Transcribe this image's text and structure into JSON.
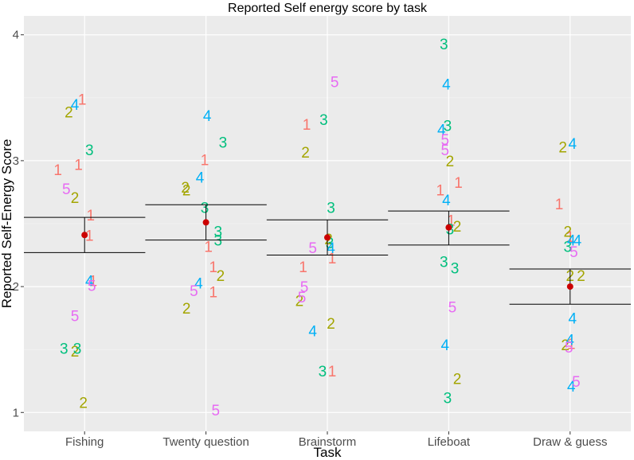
{
  "chart_data": {
    "type": "scatter",
    "title": "Reported Self energy score by task",
    "xlabel": "Task",
    "ylabel": "Reported Self-Energy Score",
    "ylim": [
      0.85,
      4.15
    ],
    "yticks": [
      "1",
      "2",
      "3",
      "4"
    ],
    "ytick_values": [
      1,
      2,
      3,
      4
    ],
    "categories": [
      "Fishing",
      "Twenty question",
      "Brainstorm",
      "Lifeboat",
      "Draw & guess"
    ],
    "group_colors": {
      "1": "#F8766D",
      "2": "#A3A500",
      "3": "#00BF7D",
      "4": "#00B0F6",
      "5": "#E76BF3"
    },
    "summary": [
      {
        "task": "Fishing",
        "mean": 2.41,
        "low": 2.27,
        "high": 2.55
      },
      {
        "task": "Twenty question",
        "mean": 2.51,
        "low": 2.37,
        "high": 2.65
      },
      {
        "task": "Brainstorm",
        "mean": 2.39,
        "low": 2.25,
        "high": 2.53
      },
      {
        "task": "Lifeboat",
        "mean": 2.47,
        "low": 2.33,
        "high": 2.6
      },
      {
        "task": "Draw & guess",
        "mean": 2.0,
        "low": 1.86,
        "high": 2.14
      }
    ],
    "points": [
      {
        "task": "Fishing",
        "group": "1",
        "jitter": -0.22,
        "y": 2.92
      },
      {
        "task": "Fishing",
        "group": "1",
        "jitter": -0.05,
        "y": 2.96
      },
      {
        "task": "Fishing",
        "group": "1",
        "jitter": -0.02,
        "y": 3.48
      },
      {
        "task": "Fishing",
        "group": "1",
        "jitter": 0.04,
        "y": 2.4
      },
      {
        "task": "Fishing",
        "group": "1",
        "jitter": 0.05,
        "y": 2.56
      },
      {
        "task": "Fishing",
        "group": "1",
        "jitter": 0.07,
        "y": 2.04
      },
      {
        "task": "Fishing",
        "group": "2",
        "jitter": -0.13,
        "y": 3.38
      },
      {
        "task": "Fishing",
        "group": "2",
        "jitter": -0.08,
        "y": 2.7
      },
      {
        "task": "Fishing",
        "group": "2",
        "jitter": -0.08,
        "y": 1.48
      },
      {
        "task": "Fishing",
        "group": "2",
        "jitter": -0.01,
        "y": 1.07
      },
      {
        "task": "Fishing",
        "group": "3",
        "jitter": 0.04,
        "y": 3.08
      },
      {
        "task": "Fishing",
        "group": "3",
        "jitter": -0.17,
        "y": 1.5
      },
      {
        "task": "Fishing",
        "group": "3",
        "jitter": -0.06,
        "y": 1.5
      },
      {
        "task": "Fishing",
        "group": "4",
        "jitter": -0.08,
        "y": 3.44
      },
      {
        "task": "Fishing",
        "group": "4",
        "jitter": 0.04,
        "y": 2.04
      },
      {
        "task": "Fishing",
        "group": "5",
        "jitter": -0.15,
        "y": 2.77
      },
      {
        "task": "Fishing",
        "group": "5",
        "jitter": -0.08,
        "y": 1.76
      },
      {
        "task": "Fishing",
        "group": "5",
        "jitter": 0.06,
        "y": 2.0
      },
      {
        "task": "Twenty question",
        "group": "1",
        "jitter": -0.01,
        "y": 3.0
      },
      {
        "task": "Twenty question",
        "group": "1",
        "jitter": 0.02,
        "y": 2.31
      },
      {
        "task": "Twenty question",
        "group": "1",
        "jitter": 0.06,
        "y": 2.15
      },
      {
        "task": "Twenty question",
        "group": "1",
        "jitter": 0.06,
        "y": 1.95
      },
      {
        "task": "Twenty question",
        "group": "2",
        "jitter": -0.17,
        "y": 2.78
      },
      {
        "task": "Twenty question",
        "group": "2",
        "jitter": -0.16,
        "y": 2.76
      },
      {
        "task": "Twenty question",
        "group": "2",
        "jitter": -0.16,
        "y": 1.82
      },
      {
        "task": "Twenty question",
        "group": "2",
        "jitter": 0.12,
        "y": 2.08
      },
      {
        "task": "Twenty question",
        "group": "3",
        "jitter": 0.14,
        "y": 3.14
      },
      {
        "task": "Twenty question",
        "group": "3",
        "jitter": -0.01,
        "y": 2.62
      },
      {
        "task": "Twenty question",
        "group": "3",
        "jitter": 0.1,
        "y": 2.43
      },
      {
        "task": "Twenty question",
        "group": "3",
        "jitter": 0.1,
        "y": 2.36
      },
      {
        "task": "Twenty question",
        "group": "4",
        "jitter": -0.05,
        "y": 2.86
      },
      {
        "task": "Twenty question",
        "group": "4",
        "jitter": -0.06,
        "y": 2.02
      },
      {
        "task": "Twenty question",
        "group": "4",
        "jitter": 0.01,
        "y": 3.35
      },
      {
        "task": "Twenty question",
        "group": "5",
        "jitter": -0.1,
        "y": 1.96
      },
      {
        "task": "Twenty question",
        "group": "5",
        "jitter": 0.08,
        "y": 1.01
      },
      {
        "task": "Brainstorm",
        "group": "1",
        "jitter": -0.17,
        "y": 3.28
      },
      {
        "task": "Brainstorm",
        "group": "1",
        "jitter": -0.2,
        "y": 2.15
      },
      {
        "task": "Brainstorm",
        "group": "1",
        "jitter": 0.04,
        "y": 2.22
      },
      {
        "task": "Brainstorm",
        "group": "1",
        "jitter": 0.04,
        "y": 1.32
      },
      {
        "task": "Brainstorm",
        "group": "2",
        "jitter": -0.18,
        "y": 3.06
      },
      {
        "task": "Brainstorm",
        "group": "2",
        "jitter": -0.23,
        "y": 1.88
      },
      {
        "task": "Brainstorm",
        "group": "2",
        "jitter": 0.01,
        "y": 2.37
      },
      {
        "task": "Brainstorm",
        "group": "2",
        "jitter": 0.03,
        "y": 1.7
      },
      {
        "task": "Brainstorm",
        "group": "3",
        "jitter": -0.03,
        "y": 3.32
      },
      {
        "task": "Brainstorm",
        "group": "3",
        "jitter": 0.03,
        "y": 2.62
      },
      {
        "task": "Brainstorm",
        "group": "3",
        "jitter": 0.02,
        "y": 2.34
      },
      {
        "task": "Brainstorm",
        "group": "3",
        "jitter": -0.04,
        "y": 1.32
      },
      {
        "task": "Brainstorm",
        "group": "4",
        "jitter": 0.03,
        "y": 2.3
      },
      {
        "task": "Brainstorm",
        "group": "4",
        "jitter": -0.12,
        "y": 1.64
      },
      {
        "task": "Brainstorm",
        "group": "5",
        "jitter": 0.06,
        "y": 3.62
      },
      {
        "task": "Brainstorm",
        "group": "5",
        "jitter": -0.12,
        "y": 2.3
      },
      {
        "task": "Brainstorm",
        "group": "5",
        "jitter": -0.19,
        "y": 1.99
      },
      {
        "task": "Brainstorm",
        "group": "5",
        "jitter": -0.21,
        "y": 1.91
      },
      {
        "task": "Lifeboat",
        "group": "1",
        "jitter": -0.07,
        "y": 2.76
      },
      {
        "task": "Lifeboat",
        "group": "1",
        "jitter": 0.08,
        "y": 2.82
      },
      {
        "task": "Lifeboat",
        "group": "1",
        "jitter": 0.02,
        "y": 2.52
      },
      {
        "task": "Lifeboat",
        "group": "2",
        "jitter": 0.01,
        "y": 2.99
      },
      {
        "task": "Lifeboat",
        "group": "2",
        "jitter": 0.07,
        "y": 2.47
      },
      {
        "task": "Lifeboat",
        "group": "2",
        "jitter": 0.07,
        "y": 1.26
      },
      {
        "task": "Lifeboat",
        "group": "3",
        "jitter": -0.04,
        "y": 3.92
      },
      {
        "task": "Lifeboat",
        "group": "3",
        "jitter": -0.01,
        "y": 3.27
      },
      {
        "task": "Lifeboat",
        "group": "3",
        "jitter": 0.01,
        "y": 2.45
      },
      {
        "task": "Lifeboat",
        "group": "3",
        "jitter": -0.04,
        "y": 2.19
      },
      {
        "task": "Lifeboat",
        "group": "3",
        "jitter": 0.05,
        "y": 2.14
      },
      {
        "task": "Lifeboat",
        "group": "3",
        "jitter": -0.01,
        "y": 1.11
      },
      {
        "task": "Lifeboat",
        "group": "4",
        "jitter": -0.02,
        "y": 3.6
      },
      {
        "task": "Lifeboat",
        "group": "4",
        "jitter": -0.06,
        "y": 3.24
      },
      {
        "task": "Lifeboat",
        "group": "4",
        "jitter": -0.02,
        "y": 2.68
      },
      {
        "task": "Lifeboat",
        "group": "4",
        "jitter": -0.03,
        "y": 1.53
      },
      {
        "task": "Lifeboat",
        "group": "5",
        "jitter": -0.03,
        "y": 3.16
      },
      {
        "task": "Lifeboat",
        "group": "5",
        "jitter": -0.03,
        "y": 3.08
      },
      {
        "task": "Lifeboat",
        "group": "5",
        "jitter": 0.03,
        "y": 1.83
      },
      {
        "task": "Draw & guess",
        "group": "1",
        "jitter": -0.09,
        "y": 2.65
      },
      {
        "task": "Draw & guess",
        "group": "1",
        "jitter": 0.0,
        "y": 2.39
      },
      {
        "task": "Draw & guess",
        "group": "1",
        "jitter": 0.01,
        "y": 1.54
      },
      {
        "task": "Draw & guess",
        "group": "2",
        "jitter": -0.06,
        "y": 3.1
      },
      {
        "task": "Draw & guess",
        "group": "2",
        "jitter": -0.02,
        "y": 2.43
      },
      {
        "task": "Draw & guess",
        "group": "2",
        "jitter": 0.0,
        "y": 2.08
      },
      {
        "task": "Draw & guess",
        "group": "2",
        "jitter": 0.09,
        "y": 2.08
      },
      {
        "task": "Draw & guess",
        "group": "2",
        "jitter": -0.04,
        "y": 1.53
      },
      {
        "task": "Draw & guess",
        "group": "3",
        "jitter": -0.02,
        "y": 2.31
      },
      {
        "task": "Draw & guess",
        "group": "4",
        "jitter": 0.02,
        "y": 3.13
      },
      {
        "task": "Draw & guess",
        "group": "4",
        "jitter": 0.01,
        "y": 2.36
      },
      {
        "task": "Draw & guess",
        "group": "4",
        "jitter": 0.06,
        "y": 2.36
      },
      {
        "task": "Draw & guess",
        "group": "4",
        "jitter": 0.02,
        "y": 1.74
      },
      {
        "task": "Draw & guess",
        "group": "4",
        "jitter": 0.0,
        "y": 1.57
      },
      {
        "task": "Draw & guess",
        "group": "4",
        "jitter": 0.01,
        "y": 1.2
      },
      {
        "task": "Draw & guess",
        "group": "5",
        "jitter": 0.03,
        "y": 2.27
      },
      {
        "task": "Draw & guess",
        "group": "5",
        "jitter": -0.01,
        "y": 1.51
      },
      {
        "task": "Draw & guess",
        "group": "5",
        "jitter": 0.05,
        "y": 1.24
      }
    ]
  }
}
